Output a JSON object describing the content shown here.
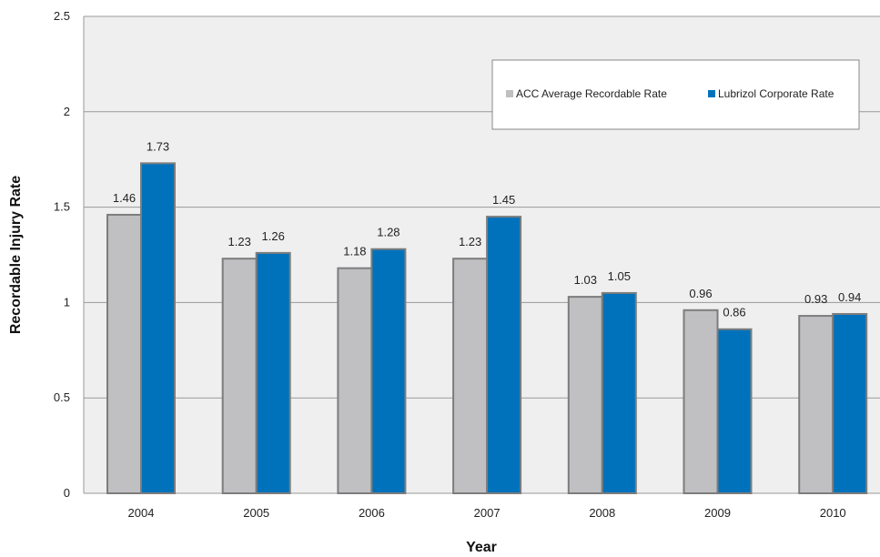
{
  "chart_data": {
    "type": "bar",
    "categories": [
      "2004",
      "2005",
      "2006",
      "2007",
      "2008",
      "2009",
      "2010"
    ],
    "series": [
      {
        "name": "ACC Average Recordable Rate",
        "color": "#c0c0c2",
        "values": [
          1.46,
          1.23,
          1.18,
          1.23,
          1.03,
          0.96,
          0.93
        ],
        "labels": [
          "1.46",
          "1.23",
          "1.18",
          "1.23",
          "1.03",
          "0.96",
          "0.93"
        ]
      },
      {
        "name": "Lubrizol Corporate Rate",
        "color": "#0072bc",
        "values": [
          1.73,
          1.26,
          1.28,
          1.45,
          1.05,
          0.86,
          0.94
        ],
        "labels": [
          "1.73",
          "1.26",
          "1.28",
          "1.45",
          "1.05",
          "0.86",
          "0.94"
        ]
      }
    ],
    "xlabel": "Year",
    "ylabel": "Recordable Injury Rate",
    "ylim": [
      0,
      2.5
    ],
    "yticks": [
      0,
      0.5,
      1,
      1.5,
      2,
      2.5
    ],
    "ytick_labels": [
      "0",
      "0.5",
      "1",
      "1.5",
      "2",
      "2.5"
    ],
    "grid": true,
    "legend_position": "top-right",
    "plot_background": "#efeff0"
  }
}
